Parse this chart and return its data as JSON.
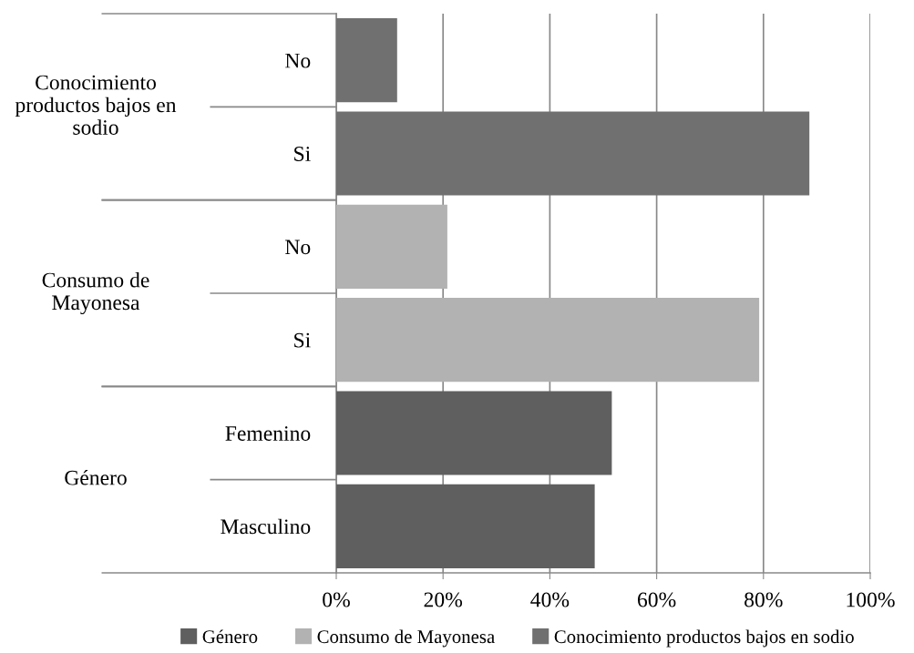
{
  "chart_data": {
    "type": "bar",
    "orientation": "horizontal",
    "categories": [
      "No",
      "Si",
      "No",
      "Si",
      "Femenino",
      "Masculino"
    ],
    "series": [
      {
        "name": "Género",
        "color": "#5f5f5f",
        "values": [
          null,
          null,
          null,
          null,
          51.6,
          48.4
        ]
      },
      {
        "name": "Consumo de Mayonesa",
        "color": "#b2b2b2",
        "values": [
          null,
          null,
          20.8,
          79.2,
          null,
          null
        ]
      },
      {
        "name": "Conocimiento productos bajos en sodio",
        "color": "#707070",
        "values": [
          11.4,
          88.6,
          null,
          null,
          null,
          null
        ]
      }
    ],
    "xlim": [
      0,
      100
    ],
    "xticks": [
      {
        "value": 0,
        "label": "0%"
      },
      {
        "value": 20,
        "label": "20%"
      },
      {
        "value": 40,
        "label": "40%"
      },
      {
        "value": 60,
        "label": "60%"
      },
      {
        "value": 80,
        "label": "80%"
      },
      {
        "value": 100,
        "label": "100%"
      }
    ],
    "grid": "x",
    "legend": "bottom"
  }
}
